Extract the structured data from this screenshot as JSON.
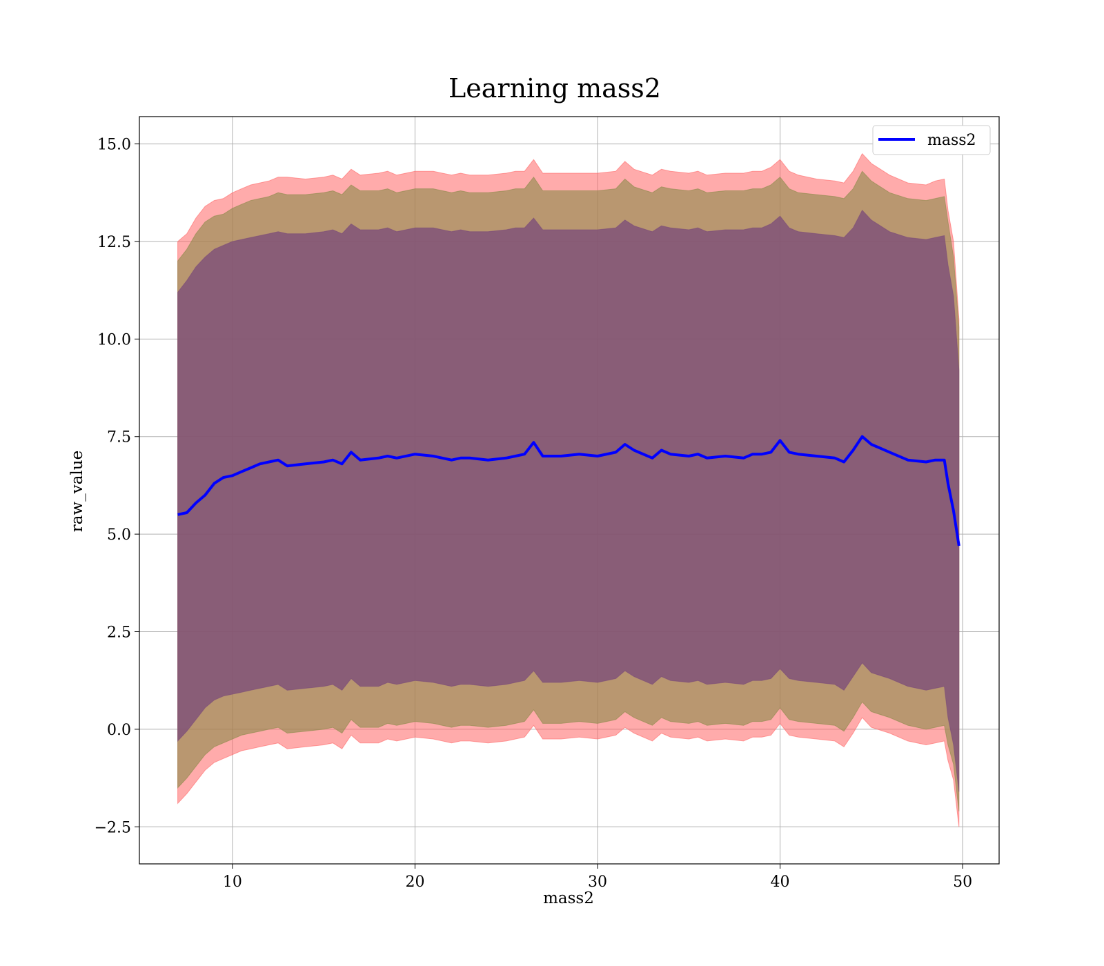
{
  "chart_data": {
    "type": "line",
    "title": "Learning mass2",
    "xlabel": "mass2",
    "ylabel": "raw_value",
    "xlim": [
      4.9,
      52.0
    ],
    "ylim": [
      -3.45,
      15.7
    ],
    "xticks": [
      10,
      20,
      30,
      40,
      50
    ],
    "xtick_labels": [
      "10",
      "20",
      "30",
      "40",
      "50"
    ],
    "yticks": [
      -2.5,
      0.0,
      2.5,
      5.0,
      7.5,
      10.0,
      12.5,
      15.0
    ],
    "ytick_labels": [
      "−2.5",
      "0.0",
      "2.5",
      "5.0",
      "7.5",
      "10.0",
      "12.5",
      "15.0"
    ],
    "grid": true,
    "legend": {
      "position": "top-right",
      "entries": [
        "mass2"
      ]
    },
    "colors": {
      "line": "#0000ff",
      "outer_band": "#ff6666",
      "middle_band": "#8b8b4a",
      "inner_band": "#7a4a7a",
      "grid": "#b0b0b0"
    },
    "series": [
      {
        "name": "mass2",
        "x": [
          7.0,
          7.5,
          8.0,
          8.5,
          9.0,
          9.5,
          10.0,
          10.5,
          11.0,
          11.5,
          12.0,
          12.5,
          13.0,
          14.0,
          15.0,
          15.5,
          16.0,
          16.5,
          17.0,
          18.0,
          18.5,
          19.0,
          20.0,
          21.0,
          22.0,
          22.5,
          23.0,
          24.0,
          25.0,
          25.5,
          26.0,
          26.5,
          27.0,
          28.0,
          29.0,
          30.0,
          31.0,
          31.5,
          32.0,
          33.0,
          33.5,
          34.0,
          35.0,
          35.5,
          36.0,
          37.0,
          38.0,
          38.5,
          39.0,
          39.5,
          40.0,
          40.5,
          41.0,
          42.0,
          43.0,
          43.5,
          44.0,
          44.5,
          45.0,
          46.0,
          47.0,
          48.0,
          48.5,
          49.0,
          49.2,
          49.5,
          49.8
        ],
        "y": [
          5.5,
          5.55,
          5.8,
          6.0,
          6.3,
          6.45,
          6.5,
          6.6,
          6.7,
          6.8,
          6.85,
          6.9,
          6.75,
          6.8,
          6.85,
          6.9,
          6.8,
          7.1,
          6.9,
          6.95,
          7.0,
          6.95,
          7.05,
          7.0,
          6.9,
          6.95,
          6.95,
          6.9,
          6.95,
          7.0,
          7.05,
          7.35,
          7.0,
          7.0,
          7.05,
          7.0,
          7.1,
          7.3,
          7.15,
          6.95,
          7.15,
          7.05,
          7.0,
          7.05,
          6.95,
          7.0,
          6.95,
          7.05,
          7.05,
          7.1,
          7.4,
          7.1,
          7.05,
          7.0,
          6.95,
          6.85,
          7.15,
          7.5,
          7.3,
          7.1,
          6.9,
          6.85,
          6.9,
          6.9,
          6.3,
          5.6,
          4.7
        ]
      }
    ],
    "bands": [
      {
        "name": "outer",
        "upper": [
          12.5,
          12.7,
          13.1,
          13.4,
          13.55,
          13.6,
          13.75,
          13.85,
          13.95,
          14.0,
          14.05,
          14.15,
          14.15,
          14.1,
          14.15,
          14.2,
          14.1,
          14.35,
          14.2,
          14.25,
          14.3,
          14.2,
          14.3,
          14.3,
          14.2,
          14.25,
          14.2,
          14.2,
          14.25,
          14.3,
          14.3,
          14.6,
          14.25,
          14.25,
          14.25,
          14.25,
          14.3,
          14.55,
          14.35,
          14.2,
          14.35,
          14.3,
          14.25,
          14.3,
          14.2,
          14.25,
          14.25,
          14.3,
          14.3,
          14.4,
          14.6,
          14.3,
          14.2,
          14.1,
          14.05,
          14.0,
          14.3,
          14.75,
          14.5,
          14.2,
          14.0,
          13.95,
          14.05,
          14.1,
          13.3,
          12.5,
          10.5
        ],
        "lower": [
          -1.9,
          -1.65,
          -1.35,
          -1.05,
          -0.85,
          -0.75,
          -0.65,
          -0.55,
          -0.5,
          -0.45,
          -0.4,
          -0.35,
          -0.5,
          -0.45,
          -0.4,
          -0.35,
          -0.5,
          -0.15,
          -0.35,
          -0.35,
          -0.25,
          -0.3,
          -0.2,
          -0.25,
          -0.35,
          -0.3,
          -0.3,
          -0.35,
          -0.3,
          -0.25,
          -0.2,
          0.1,
          -0.25,
          -0.25,
          -0.2,
          -0.25,
          -0.15,
          0.05,
          -0.1,
          -0.3,
          -0.1,
          -0.2,
          -0.25,
          -0.2,
          -0.3,
          -0.25,
          -0.3,
          -0.2,
          -0.2,
          -0.15,
          0.15,
          -0.15,
          -0.2,
          -0.25,
          -0.3,
          -0.45,
          -0.1,
          0.3,
          0.05,
          -0.1,
          -0.3,
          -0.4,
          -0.35,
          -0.3,
          -0.8,
          -1.3,
          -2.5
        ]
      },
      {
        "name": "middle",
        "upper": [
          12.0,
          12.3,
          12.7,
          13.0,
          13.15,
          13.2,
          13.35,
          13.45,
          13.55,
          13.6,
          13.65,
          13.75,
          13.7,
          13.7,
          13.75,
          13.8,
          13.7,
          13.95,
          13.8,
          13.8,
          13.85,
          13.75,
          13.85,
          13.85,
          13.75,
          13.8,
          13.75,
          13.75,
          13.8,
          13.85,
          13.85,
          14.15,
          13.8,
          13.8,
          13.8,
          13.8,
          13.85,
          14.1,
          13.9,
          13.75,
          13.9,
          13.85,
          13.8,
          13.85,
          13.75,
          13.8,
          13.8,
          13.85,
          13.85,
          13.95,
          14.15,
          13.85,
          13.75,
          13.7,
          13.65,
          13.6,
          13.85,
          14.3,
          14.05,
          13.75,
          13.6,
          13.55,
          13.6,
          13.65,
          13.0,
          12.1,
          10.3
        ],
        "lower": [
          -1.5,
          -1.25,
          -0.95,
          -0.65,
          -0.45,
          -0.35,
          -0.25,
          -0.15,
          -0.1,
          -0.05,
          0.0,
          0.05,
          -0.1,
          -0.05,
          0.0,
          0.05,
          -0.1,
          0.25,
          0.05,
          0.05,
          0.15,
          0.1,
          0.2,
          0.15,
          0.05,
          0.1,
          0.1,
          0.05,
          0.1,
          0.15,
          0.2,
          0.5,
          0.15,
          0.15,
          0.2,
          0.15,
          0.25,
          0.45,
          0.3,
          0.1,
          0.3,
          0.2,
          0.15,
          0.2,
          0.1,
          0.15,
          0.1,
          0.2,
          0.2,
          0.25,
          0.55,
          0.25,
          0.2,
          0.15,
          0.1,
          -0.05,
          0.3,
          0.7,
          0.45,
          0.3,
          0.1,
          0.0,
          0.05,
          0.1,
          -0.4,
          -0.9,
          -2.1
        ]
      },
      {
        "name": "inner",
        "upper": [
          11.2,
          11.5,
          11.85,
          12.1,
          12.3,
          12.4,
          12.5,
          12.55,
          12.6,
          12.65,
          12.7,
          12.75,
          12.7,
          12.7,
          12.75,
          12.8,
          12.7,
          12.95,
          12.8,
          12.8,
          12.85,
          12.75,
          12.85,
          12.85,
          12.75,
          12.8,
          12.75,
          12.75,
          12.8,
          12.85,
          12.85,
          13.1,
          12.8,
          12.8,
          12.8,
          12.8,
          12.85,
          13.05,
          12.9,
          12.75,
          12.9,
          12.85,
          12.8,
          12.85,
          12.75,
          12.8,
          12.8,
          12.85,
          12.85,
          12.95,
          13.15,
          12.85,
          12.75,
          12.7,
          12.65,
          12.6,
          12.85,
          13.3,
          13.05,
          12.75,
          12.6,
          12.55,
          12.6,
          12.65,
          11.9,
          11.1,
          9.2
        ],
        "lower": [
          -0.3,
          -0.05,
          0.25,
          0.55,
          0.75,
          0.85,
          0.9,
          0.95,
          1.0,
          1.05,
          1.1,
          1.15,
          1.0,
          1.05,
          1.1,
          1.15,
          1.0,
          1.3,
          1.1,
          1.1,
          1.2,
          1.15,
          1.25,
          1.2,
          1.1,
          1.15,
          1.15,
          1.1,
          1.15,
          1.2,
          1.25,
          1.5,
          1.2,
          1.2,
          1.25,
          1.2,
          1.3,
          1.5,
          1.35,
          1.15,
          1.35,
          1.25,
          1.2,
          1.25,
          1.15,
          1.2,
          1.15,
          1.25,
          1.25,
          1.3,
          1.55,
          1.3,
          1.25,
          1.2,
          1.15,
          1.0,
          1.35,
          1.7,
          1.45,
          1.3,
          1.1,
          1.0,
          1.05,
          1.1,
          0.3,
          -0.4,
          -1.6
        ]
      }
    ]
  }
}
